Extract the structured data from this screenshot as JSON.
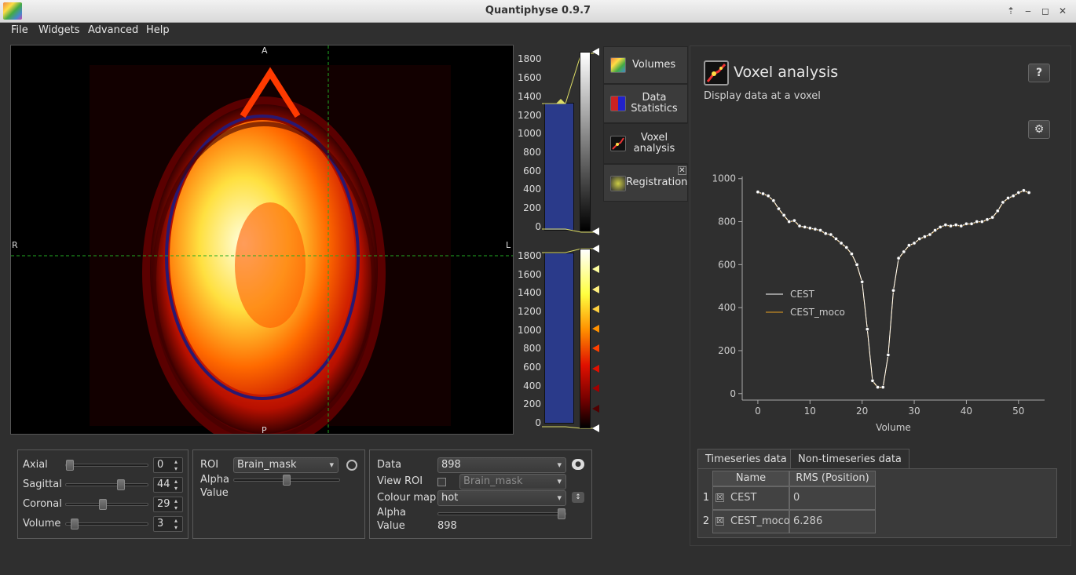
{
  "window": {
    "title": "Quantiphyse 0.9.7",
    "controls": [
      "⇡",
      "‒",
      "◻",
      "✕"
    ]
  },
  "menus": [
    {
      "label": "File"
    },
    {
      "label": "Widgets"
    },
    {
      "label": "Advanced"
    },
    {
      "label": "Help"
    }
  ],
  "viewer": {
    "orient": {
      "top": "A",
      "bottom": "P",
      "left": "R",
      "right": "L"
    },
    "crosshair_color": "#22aa22"
  },
  "hist_top": {
    "ticks": [
      "1800",
      "1600",
      "1400",
      "1200",
      "1000",
      "800",
      "600",
      "400",
      "200",
      "0"
    ]
  },
  "hist_bottom": {
    "ticks": [
      "1800",
      "1600",
      "1400",
      "1200",
      "1000",
      "800",
      "600",
      "400",
      "200",
      "0"
    ]
  },
  "tabs": [
    {
      "label": "Volumes",
      "icon": "volumes-icon"
    },
    {
      "label": "Data Statistics",
      "icon": "data-statistics-icon"
    },
    {
      "label": "Voxel analysis",
      "icon": "voxel-analysis-icon"
    },
    {
      "label": "Registration",
      "icon": "registration-icon"
    }
  ],
  "panel": {
    "title": "Voxel analysis",
    "subtitle": "Display data at a voxel",
    "help": "?",
    "settings": "⚙"
  },
  "chart_data": {
    "type": "line",
    "xlabel": "Volume",
    "ylabel": "",
    "xlim": [
      -3,
      55
    ],
    "ylim": [
      -30,
      1010
    ],
    "xticks": [
      "0",
      "10",
      "20",
      "30",
      "40",
      "50"
    ],
    "yticks": [
      "0",
      "200",
      "400",
      "600",
      "800",
      "1000"
    ],
    "legend_placement": "center-left",
    "series": [
      {
        "name": "CEST",
        "color": "#ffffff",
        "values": [
          938,
          930,
          920,
          898,
          860,
          830,
          800,
          805,
          780,
          775,
          770,
          765,
          760,
          745,
          740,
          720,
          700,
          680,
          650,
          600,
          520,
          300,
          60,
          30,
          30,
          180,
          480,
          630,
          660,
          690,
          700,
          720,
          730,
          740,
          760,
          775,
          785,
          780,
          785,
          780,
          790,
          790,
          800,
          800,
          810,
          820,
          850,
          890,
          910,
          920,
          935,
          945,
          935
        ]
      },
      {
        "name": "CEST_moco",
        "color": "#e8a020",
        "values": [
          936,
          928,
          918,
          896,
          858,
          828,
          798,
          803,
          778,
          773,
          768,
          763,
          758,
          743,
          738,
          718,
          698,
          678,
          648,
          598,
          518,
          298,
          58,
          28,
          28,
          178,
          478,
          628,
          658,
          688,
          698,
          718,
          728,
          738,
          758,
          773,
          783,
          778,
          783,
          778,
          788,
          788,
          798,
          798,
          808,
          818,
          848,
          888,
          908,
          918,
          933,
          943,
          933
        ]
      }
    ]
  },
  "subtabs": [
    {
      "label": "Timeseries data"
    },
    {
      "label": "Non-timeseries data"
    }
  ],
  "table": {
    "headers": [
      "Name",
      "RMS (Position)"
    ],
    "rows": [
      {
        "num": "1",
        "check": "☒",
        "name": "CEST",
        "rms": "0"
      },
      {
        "num": "2",
        "check": "☒",
        "name": "CEST_moco",
        "rms": "6.286"
      }
    ]
  },
  "nav": {
    "axial": {
      "label": "Axial",
      "value": "0",
      "pos": 0.0
    },
    "sagittal": {
      "label": "Sagittal",
      "value": "44",
      "pos": 0.69
    },
    "coronal": {
      "label": "Coronal",
      "value": "29",
      "pos": 0.45
    },
    "volume": {
      "label": "Volume",
      "value": "3",
      "pos": 0.06
    }
  },
  "roi": {
    "label": "ROI",
    "value": "Brain_mask",
    "alpha_label": "Alpha",
    "value_label": "Value",
    "alpha": 0.5
  },
  "data": {
    "label": "Data",
    "value": "898",
    "view_roi_label": "View ROI",
    "view_roi_value": "Brain_mask",
    "cmap_label": "Colour map",
    "cmap_value": "hot",
    "alpha_label": "Alpha",
    "value_label": "Value",
    "alpha": 1.0
  }
}
